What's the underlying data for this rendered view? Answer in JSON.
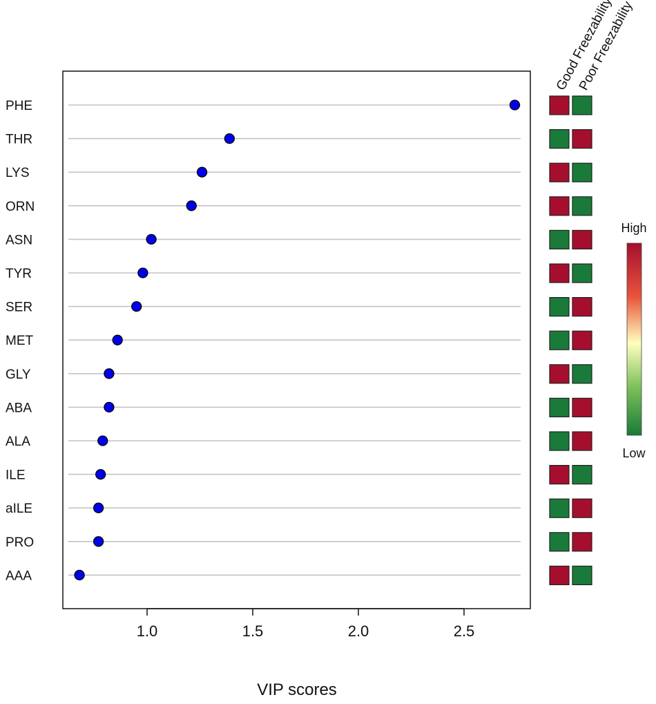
{
  "chart_data": {
    "type": "scatter",
    "title": "",
    "xlabel": "VIP scores",
    "ylabel": "",
    "xlim": [
      0.6,
      2.8
    ],
    "x_ticks": [
      1.0,
      1.5,
      2.0,
      2.5
    ],
    "grid": "horizontal",
    "point_color": "#0000ee",
    "categories": [
      "PHE",
      "THR",
      "LYS",
      "ORN",
      "ASN",
      "TYR",
      "SER",
      "MET",
      "GLY",
      "ABA",
      "ALA",
      "ILE",
      "aILE",
      "PRO",
      "AAA"
    ],
    "values": [
      2.74,
      1.39,
      1.26,
      1.21,
      1.02,
      0.98,
      0.95,
      0.86,
      0.82,
      0.82,
      0.79,
      0.78,
      0.77,
      0.77,
      0.68
    ],
    "heatmap": {
      "columns": [
        "Good Freezability",
        "Poor Freezability"
      ],
      "levels": [
        [
          "high",
          "low"
        ],
        [
          "low",
          "high"
        ],
        [
          "high",
          "low"
        ],
        [
          "high",
          "low"
        ],
        [
          "low",
          "high"
        ],
        [
          "high",
          "low"
        ],
        [
          "low",
          "high"
        ],
        [
          "low",
          "high"
        ],
        [
          "high",
          "low"
        ],
        [
          "low",
          "high"
        ],
        [
          "low",
          "high"
        ],
        [
          "high",
          "low"
        ],
        [
          "low",
          "high"
        ],
        [
          "low",
          "high"
        ],
        [
          "high",
          "low"
        ]
      ]
    },
    "color_scale": {
      "high_label": "High",
      "low_label": "Low",
      "high_color": "#a50f2d",
      "mid_color": "#ffffbf",
      "low_color": "#1a7a3a"
    }
  }
}
